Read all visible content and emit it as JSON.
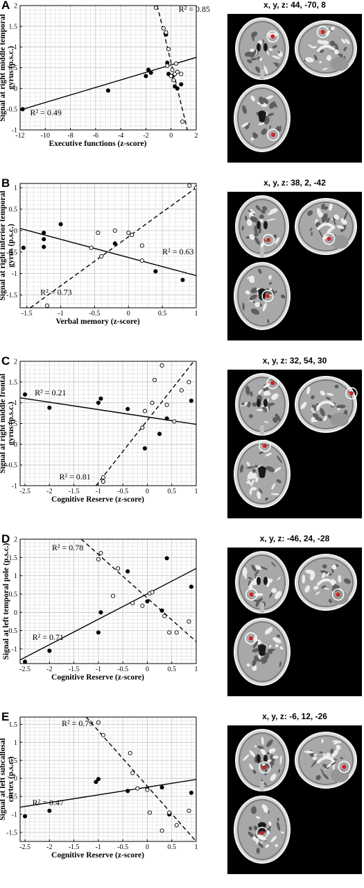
{
  "panels": [
    {
      "letter": "A",
      "coords": "x, y, z: 44, -70, 8",
      "ylabel_lines": [
        "Signal at right middle temporal",
        "gyrus (p.s.c.)"
      ],
      "xlabel": "Executive functions (z-score)",
      "chart_data": {
        "type": "scatter",
        "xlim": [
          -12,
          2
        ],
        "ylim": [
          -1,
          2
        ],
        "xticks": [
          -12,
          -10,
          -8,
          -6,
          -4,
          -2,
          0,
          2
        ],
        "yticks": [
          -1,
          -0.5,
          0,
          0.5,
          1,
          1.5,
          2
        ],
        "xticklabels": [
          "-12",
          "-10",
          "-8",
          "-6",
          "-4",
          "-2",
          "0",
          "2"
        ],
        "yticklabels": [
          "-1",
          "-0.5",
          "0",
          "0.5",
          "1",
          "1.5",
          "2"
        ],
        "series": [
          {
            "marker": "filled",
            "line": "solid",
            "r2": "R² = 0.49",
            "line_pts": [
              [
                -12,
                -0.52
              ],
              [
                2,
                0.75
              ]
            ],
            "points": [
              [
                -11.8,
                -0.5
              ],
              [
                -5,
                -0.05
              ],
              [
                -2,
                0.3
              ],
              [
                -1.8,
                0.45
              ],
              [
                -1.6,
                0.38
              ],
              [
                -0.4,
                1.3
              ],
              [
                -0.3,
                0.62
              ],
              [
                -0.2,
                0.35
              ],
              [
                0.1,
                0.3
              ],
              [
                0.3,
                0.05
              ],
              [
                0.5,
                0.0
              ],
              [
                0.8,
                0.1
              ]
            ]
          },
          {
            "marker": "open",
            "line": "dashed",
            "r2": "R² = 0.85",
            "line_pts": [
              [
                -1.1,
                2.0
              ],
              [
                1.3,
                -1.0
              ]
            ],
            "points": [
              [
                -1.2,
                1.95
              ],
              [
                -0.6,
                1.45
              ],
              [
                -0.4,
                1.35
              ],
              [
                -0.2,
                0.95
              ],
              [
                -0.3,
                0.55
              ],
              [
                0.0,
                0.3
              ],
              [
                0.1,
                0.45
              ],
              [
                0.2,
                0.2
              ],
              [
                0.3,
                0.35
              ],
              [
                0.4,
                0.6
              ],
              [
                0.5,
                0.4
              ],
              [
                0.8,
                0.35
              ],
              [
                0.9,
                -0.8
              ]
            ]
          }
        ]
      }
    },
    {
      "letter": "B",
      "coords": "x, y, z: 38, 2, -42",
      "ylabel_lines": [
        "Signal at right inferior temporal",
        "gyrus (p.s.c.)"
      ],
      "xlabel": "Verbal memory (z-score)",
      "chart_data": {
        "type": "scatter",
        "xlim": [
          -1.6,
          1
        ],
        "ylim": [
          -1.8,
          1.1
        ],
        "xticks": [
          -1.5,
          -1,
          -0.5,
          0,
          0.5,
          1
        ],
        "yticks": [
          -1.5,
          -1,
          -0.5,
          0,
          0.5,
          1
        ],
        "xticklabels": [
          "-1.5",
          "-1",
          "-0.5",
          "0",
          "0.5",
          "1"
        ],
        "yticklabels": [
          "-1.5",
          "-1",
          "-0.5",
          "0",
          "0.5",
          "1"
        ],
        "series": [
          {
            "marker": "filled",
            "line": "solid",
            "r2": "R² = 0.63",
            "line_pts": [
              [
                -1.6,
                0.05
              ],
              [
                1,
                -1.05
              ]
            ],
            "points": [
              [
                -1.55,
                -0.4
              ],
              [
                -1.25,
                -0.05
              ],
              [
                -1.25,
                -0.2
              ],
              [
                -1.25,
                -0.38
              ],
              [
                -1.0,
                0.15
              ],
              [
                -0.2,
                -0.3
              ],
              [
                0.4,
                -0.95
              ],
              [
                0.8,
                -1.15
              ]
            ]
          },
          {
            "marker": "open",
            "line": "dashed",
            "r2": "R² = 0.73",
            "line_pts": [
              [
                -1.45,
                -1.8
              ],
              [
                1,
                1.0
              ]
            ],
            "points": [
              [
                -1.2,
                -1.75
              ],
              [
                -0.55,
                -0.4
              ],
              [
                -0.45,
                -0.05
              ],
              [
                -0.4,
                -0.6
              ],
              [
                -0.2,
                0.0
              ],
              [
                0.0,
                -0.05
              ],
              [
                0.05,
                -0.1
              ],
              [
                0.2,
                -0.35
              ],
              [
                0.2,
                -0.7
              ],
              [
                0.9,
                1.05
              ],
              [
                1.0,
                1.0
              ]
            ]
          }
        ]
      }
    },
    {
      "letter": "C",
      "coords": "x, y, z: 32, 54, 30",
      "ylabel_lines": [
        "Signal at right middle frontal",
        "gyrus (p.s.c.)"
      ],
      "xlabel": "Cognitive Reserve (z-score)",
      "chart_data": {
        "type": "scatter",
        "xlim": [
          -2.6,
          1
        ],
        "ylim": [
          -1,
          2
        ],
        "xticks": [
          -2.5,
          -2,
          -1.5,
          -1,
          -0.5,
          0,
          0.5,
          1
        ],
        "yticks": [
          -1,
          -0.5,
          0,
          0.5,
          1,
          1.5,
          2
        ],
        "xticklabels": [
          "-2.5",
          "-2",
          "-1.5",
          "-1",
          "-0.5",
          "0",
          "0.5",
          "1"
        ],
        "yticklabels": [
          "-1",
          "-0.5",
          "0",
          "0.5",
          "1",
          "1.5",
          "2"
        ],
        "series": [
          {
            "marker": "filled",
            "line": "solid",
            "r2": "R² = 0.21",
            "line_pts": [
              [
                -2.6,
                1.12
              ],
              [
                1,
                0.48
              ]
            ],
            "points": [
              [
                -2.5,
                1.2
              ],
              [
                -2.0,
                0.88
              ],
              [
                -1.0,
                1.0
              ],
              [
                -0.95,
                1.1
              ],
              [
                -0.4,
                0.85
              ],
              [
                -0.05,
                -0.1
              ],
              [
                0.25,
                0.25
              ],
              [
                0.4,
                0.62
              ],
              [
                0.9,
                1.05
              ]
            ]
          },
          {
            "marker": "open",
            "line": "dashed",
            "r2": "R² = 0.81",
            "line_pts": [
              [
                -1.05,
                -1.0
              ],
              [
                0.95,
                2.0
              ]
            ],
            "points": [
              [
                -0.9,
                -0.9
              ],
              [
                -0.9,
                -0.8
              ],
              [
                -0.1,
                0.4
              ],
              [
                -0.05,
                0.8
              ],
              [
                0.1,
                1.0
              ],
              [
                0.15,
                1.55
              ],
              [
                0.3,
                1.9
              ],
              [
                0.4,
                0.95
              ],
              [
                0.55,
                0.55
              ],
              [
                0.7,
                1.3
              ],
              [
                0.85,
                1.5
              ]
            ]
          }
        ]
      }
    },
    {
      "letter": "D",
      "coords": "x, y, z: -46, 24, -28",
      "ylabel_lines": [
        "Signal at left temporal pole (p.s.c.)"
      ],
      "xlabel": "Cognitive Reserve (z-score)",
      "chart_data": {
        "type": "scatter",
        "xlim": [
          -2.6,
          1
        ],
        "ylim": [
          -1.4,
          2
        ],
        "xticks": [
          -2.5,
          -2,
          -1.5,
          -1,
          -0.5,
          0,
          0.5,
          1
        ],
        "yticks": [
          -1,
          -0.5,
          0,
          0.5,
          1,
          1.5,
          2
        ],
        "xticklabels": [
          "-2.5",
          "-2",
          "-1.5",
          "-1",
          "-0.5",
          "0",
          "0.5",
          "1"
        ],
        "yticklabels": [
          "-1",
          "-0.5",
          "0",
          "0.5",
          "1",
          "1.5",
          "2"
        ],
        "series": [
          {
            "marker": "filled",
            "line": "solid",
            "r2": "R² = 0.71",
            "line_pts": [
              [
                -2.6,
                -1.3
              ],
              [
                1,
                1.2
              ]
            ],
            "points": [
              [
                -2.5,
                -1.35
              ],
              [
                -2.0,
                -1.05
              ],
              [
                -1.0,
                -0.55
              ],
              [
                -0.95,
                0.0
              ],
              [
                -0.4,
                1.12
              ],
              [
                0.0,
                0.3
              ],
              [
                0.3,
                0.05
              ],
              [
                0.4,
                1.48
              ],
              [
                0.9,
                0.7
              ]
            ]
          },
          {
            "marker": "open",
            "line": "dashed",
            "r2": "R² = 0.78",
            "line_pts": [
              [
                -1.35,
                2.0
              ],
              [
                1,
                -0.8
              ]
            ],
            "points": [
              [
                -1.0,
                1.45
              ],
              [
                -0.95,
                1.62
              ],
              [
                -0.7,
                0.45
              ],
              [
                -0.6,
                1.2
              ],
              [
                -0.3,
                0.25
              ],
              [
                -0.1,
                0.18
              ],
              [
                0.05,
                0.52
              ],
              [
                0.1,
                0.55
              ],
              [
                0.35,
                -0.1
              ],
              [
                0.45,
                -0.55
              ],
              [
                0.6,
                -0.55
              ],
              [
                0.85,
                -0.25
              ]
            ]
          }
        ]
      }
    },
    {
      "letter": "E",
      "coords": "x, y, z: -6, 12, -26",
      "ylabel_lines": [
        "Signal at left subcallosal",
        "cortex (p.s.c.)"
      ],
      "xlabel": "Cognitive Reserve (z-score)",
      "chart_data": {
        "type": "scatter",
        "xlim": [
          -2.6,
          1
        ],
        "ylim": [
          -1.75,
          1.7
        ],
        "xticks": [
          -2.5,
          -2,
          -1.5,
          -1,
          -0.5,
          0,
          0.5,
          1
        ],
        "yticks": [
          -1.5,
          -1,
          -0.5,
          0,
          0.5,
          1,
          1.5
        ],
        "xticklabels": [
          "-2.5",
          "-2",
          "-1.5",
          "-1",
          "-0.5",
          "0",
          "0.5",
          "1"
        ],
        "yticklabels": [
          "-1.5",
          "-1",
          "-0.5",
          "0",
          "0.5",
          "1",
          "1.5"
        ],
        "series": [
          {
            "marker": "filled",
            "line": "solid",
            "r2": "R² = 0.47",
            "line_pts": [
              [
                -2.6,
                -0.8
              ],
              [
                1,
                -0.03
              ]
            ],
            "points": [
              [
                -2.5,
                -1.05
              ],
              [
                -2.0,
                -0.9
              ],
              [
                -1.05,
                -0.1
              ],
              [
                -1.0,
                -0.02
              ],
              [
                -0.4,
                -0.35
              ],
              [
                0.0,
                -0.3
              ],
              [
                0.3,
                -0.25
              ],
              [
                0.45,
                -1.0
              ],
              [
                0.9,
                -0.4
              ]
            ]
          },
          {
            "marker": "open",
            "line": "dashed",
            "r2": "R² = 0.79",
            "line_pts": [
              [
                -1.25,
                1.7
              ],
              [
                1,
                -1.75
              ]
            ],
            "points": [
              [
                -1.0,
                1.55
              ],
              [
                -0.9,
                1.2
              ],
              [
                -0.35,
                0.7
              ],
              [
                -0.3,
                0.15
              ],
              [
                -0.2,
                -0.28
              ],
              [
                0.0,
                -0.32
              ],
              [
                0.05,
                -0.95
              ],
              [
                0.3,
                -1.45
              ],
              [
                0.45,
                -0.95
              ],
              [
                0.6,
                -1.3
              ],
              [
                0.85,
                -0.9
              ]
            ]
          }
        ]
      }
    }
  ]
}
